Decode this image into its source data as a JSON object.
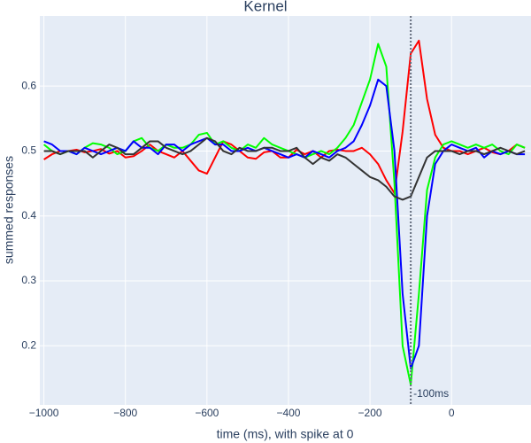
{
  "chart_data": {
    "type": "line",
    "title": "Kernel",
    "x_label": "time (ms), with spike at 0",
    "y_label": "summed responses",
    "x": [
      -1000,
      -980,
      -960,
      -940,
      -920,
      -900,
      -880,
      -860,
      -840,
      -820,
      -800,
      -780,
      -760,
      -740,
      -720,
      -700,
      -680,
      -660,
      -640,
      -620,
      -600,
      -580,
      -560,
      -540,
      -520,
      -500,
      -480,
      -460,
      -440,
      -420,
      -400,
      -380,
      -360,
      -340,
      -320,
      -300,
      -280,
      -260,
      -240,
      -220,
      -200,
      -180,
      -160,
      -140,
      -120,
      -100,
      -80,
      -60,
      -40,
      -20,
      0,
      20,
      40,
      60,
      80,
      100,
      120,
      140,
      160,
      180
    ],
    "series": [
      {
        "color": "#ff0000",
        "values": [
          0.487,
          0.495,
          0.5,
          0.5,
          0.502,
          0.498,
          0.5,
          0.503,
          0.496,
          0.5,
          0.49,
          0.492,
          0.5,
          0.51,
          0.5,
          0.495,
          0.49,
          0.5,
          0.485,
          0.47,
          0.465,
          0.49,
          0.515,
          0.51,
          0.5,
          0.49,
          0.488,
          0.498,
          0.5,
          0.49,
          0.49,
          0.502,
          0.495,
          0.5,
          0.49,
          0.5,
          0.502,
          0.5,
          0.5,
          0.505,
          0.495,
          0.48,
          0.455,
          0.435,
          0.53,
          0.65,
          0.67,
          0.58,
          0.525,
          0.505,
          0.5,
          0.5,
          0.495,
          0.5,
          0.505,
          0.498,
          0.495,
          0.5,
          0.51,
          0.505
        ]
      },
      {
        "color": "#00ff00",
        "values": [
          0.51,
          0.5,
          0.495,
          0.5,
          0.495,
          0.505,
          0.512,
          0.51,
          0.505,
          0.495,
          0.5,
          0.515,
          0.52,
          0.505,
          0.5,
          0.51,
          0.505,
          0.505,
          0.51,
          0.525,
          0.528,
          0.51,
          0.515,
          0.505,
          0.5,
          0.51,
          0.505,
          0.52,
          0.51,
          0.505,
          0.5,
          0.495,
          0.49,
          0.495,
          0.5,
          0.495,
          0.505,
          0.52,
          0.54,
          0.575,
          0.61,
          0.665,
          0.63,
          0.45,
          0.2,
          0.14,
          0.28,
          0.44,
          0.49,
          0.51,
          0.515,
          0.51,
          0.505,
          0.51,
          0.505,
          0.51,
          0.5,
          0.495,
          0.51,
          0.505
        ]
      },
      {
        "color": "#0000ff",
        "values": [
          0.515,
          0.51,
          0.5,
          0.5,
          0.495,
          0.505,
          0.5,
          0.495,
          0.5,
          0.505,
          0.5,
          0.515,
          0.505,
          0.505,
          0.495,
          0.51,
          0.51,
          0.5,
          0.51,
          0.515,
          0.52,
          0.51,
          0.51,
          0.5,
          0.5,
          0.505,
          0.5,
          0.505,
          0.5,
          0.495,
          0.49,
          0.495,
          0.49,
          0.5,
          0.495,
          0.49,
          0.5,
          0.505,
          0.515,
          0.54,
          0.57,
          0.61,
          0.6,
          0.5,
          0.28,
          0.165,
          0.2,
          0.4,
          0.48,
          0.5,
          0.51,
          0.505,
          0.5,
          0.505,
          0.49,
          0.5,
          0.495,
          0.5,
          0.495,
          0.495
        ]
      },
      {
        "color": "#333333",
        "values": [
          0.5,
          0.5,
          0.495,
          0.5,
          0.5,
          0.5,
          0.49,
          0.5,
          0.51,
          0.505,
          0.495,
          0.495,
          0.505,
          0.515,
          0.515,
          0.505,
          0.5,
          0.495,
          0.5,
          0.51,
          0.52,
          0.515,
          0.5,
          0.495,
          0.505,
          0.5,
          0.5,
          0.505,
          0.505,
          0.5,
          0.5,
          0.505,
          0.49,
          0.48,
          0.49,
          0.485,
          0.495,
          0.49,
          0.48,
          0.47,
          0.46,
          0.455,
          0.445,
          0.43,
          0.425,
          0.43,
          0.46,
          0.49,
          0.5,
          0.5,
          0.5,
          0.495,
          0.5,
          0.5,
          0.495,
          0.5,
          0.505,
          0.5,
          0.495,
          0.5
        ]
      }
    ],
    "vline": {
      "x": -100,
      "label": "-100ms"
    },
    "xlim": [
      -1010,
      195
    ],
    "ylim": [
      0.109,
      0.708
    ],
    "xticks": [
      {
        "value": -1000,
        "label": "−1000"
      },
      {
        "value": -800,
        "label": "−800"
      },
      {
        "value": -600,
        "label": "−600"
      },
      {
        "value": -400,
        "label": "−400"
      },
      {
        "value": -200,
        "label": "−200"
      },
      0
    ],
    "yticks": [
      0.2,
      0.3,
      0.4,
      0.5,
      0.6
    ],
    "grid": true
  }
}
